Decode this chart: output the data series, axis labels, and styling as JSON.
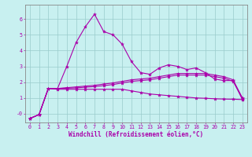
{
  "xlabel": "Windchill (Refroidissement éolien,°C)",
  "ylabel": "",
  "background_color": "#c8f0f0",
  "line_color": "#aa00aa",
  "grid_color": "#99cccc",
  "x": [
    0,
    1,
    2,
    3,
    4,
    5,
    6,
    7,
    8,
    9,
    10,
    11,
    12,
    13,
    14,
    15,
    16,
    17,
    18,
    19,
    20,
    21,
    22,
    23
  ],
  "line1": [
    -0.3,
    -0.05,
    1.6,
    1.6,
    3.0,
    4.5,
    5.5,
    6.3,
    5.2,
    5.0,
    4.4,
    3.3,
    2.6,
    2.5,
    2.9,
    3.1,
    3.0,
    2.8,
    2.9,
    2.6,
    2.2,
    2.1,
    2.1,
    0.9
  ],
  "line2": [
    -0.3,
    -0.05,
    1.6,
    1.6,
    1.65,
    1.7,
    1.75,
    1.8,
    1.88,
    1.95,
    2.05,
    2.15,
    2.2,
    2.25,
    2.35,
    2.45,
    2.55,
    2.55,
    2.55,
    2.55,
    2.45,
    2.35,
    2.15,
    1.0
  ],
  "line3": [
    -0.3,
    -0.05,
    1.6,
    1.6,
    1.62,
    1.64,
    1.68,
    1.72,
    1.78,
    1.85,
    1.95,
    2.05,
    2.1,
    2.15,
    2.25,
    2.35,
    2.45,
    2.45,
    2.45,
    2.45,
    2.35,
    2.25,
    2.05,
    1.0
  ],
  "line4": [
    -0.3,
    -0.05,
    1.6,
    1.55,
    1.55,
    1.55,
    1.55,
    1.55,
    1.55,
    1.55,
    1.55,
    1.45,
    1.35,
    1.25,
    1.2,
    1.15,
    1.1,
    1.05,
    1.0,
    0.98,
    0.95,
    0.93,
    0.92,
    0.9
  ],
  "xlim": [
    -0.5,
    23.5
  ],
  "ylim": [
    -0.55,
    6.9
  ],
  "yticks": [
    0,
    1,
    2,
    3,
    4,
    5,
    6
  ],
  "ytick_labels": [
    "-0",
    "1",
    "2",
    "3",
    "4",
    "5",
    "6"
  ],
  "xticks": [
    0,
    1,
    2,
    3,
    4,
    5,
    6,
    7,
    8,
    9,
    10,
    11,
    12,
    13,
    14,
    15,
    16,
    17,
    18,
    19,
    20,
    21,
    22,
    23
  ],
  "marker": "*",
  "markersize": 3,
  "linewidth": 0.8,
  "xlabel_fontsize": 5.5,
  "tick_fontsize": 4.8
}
